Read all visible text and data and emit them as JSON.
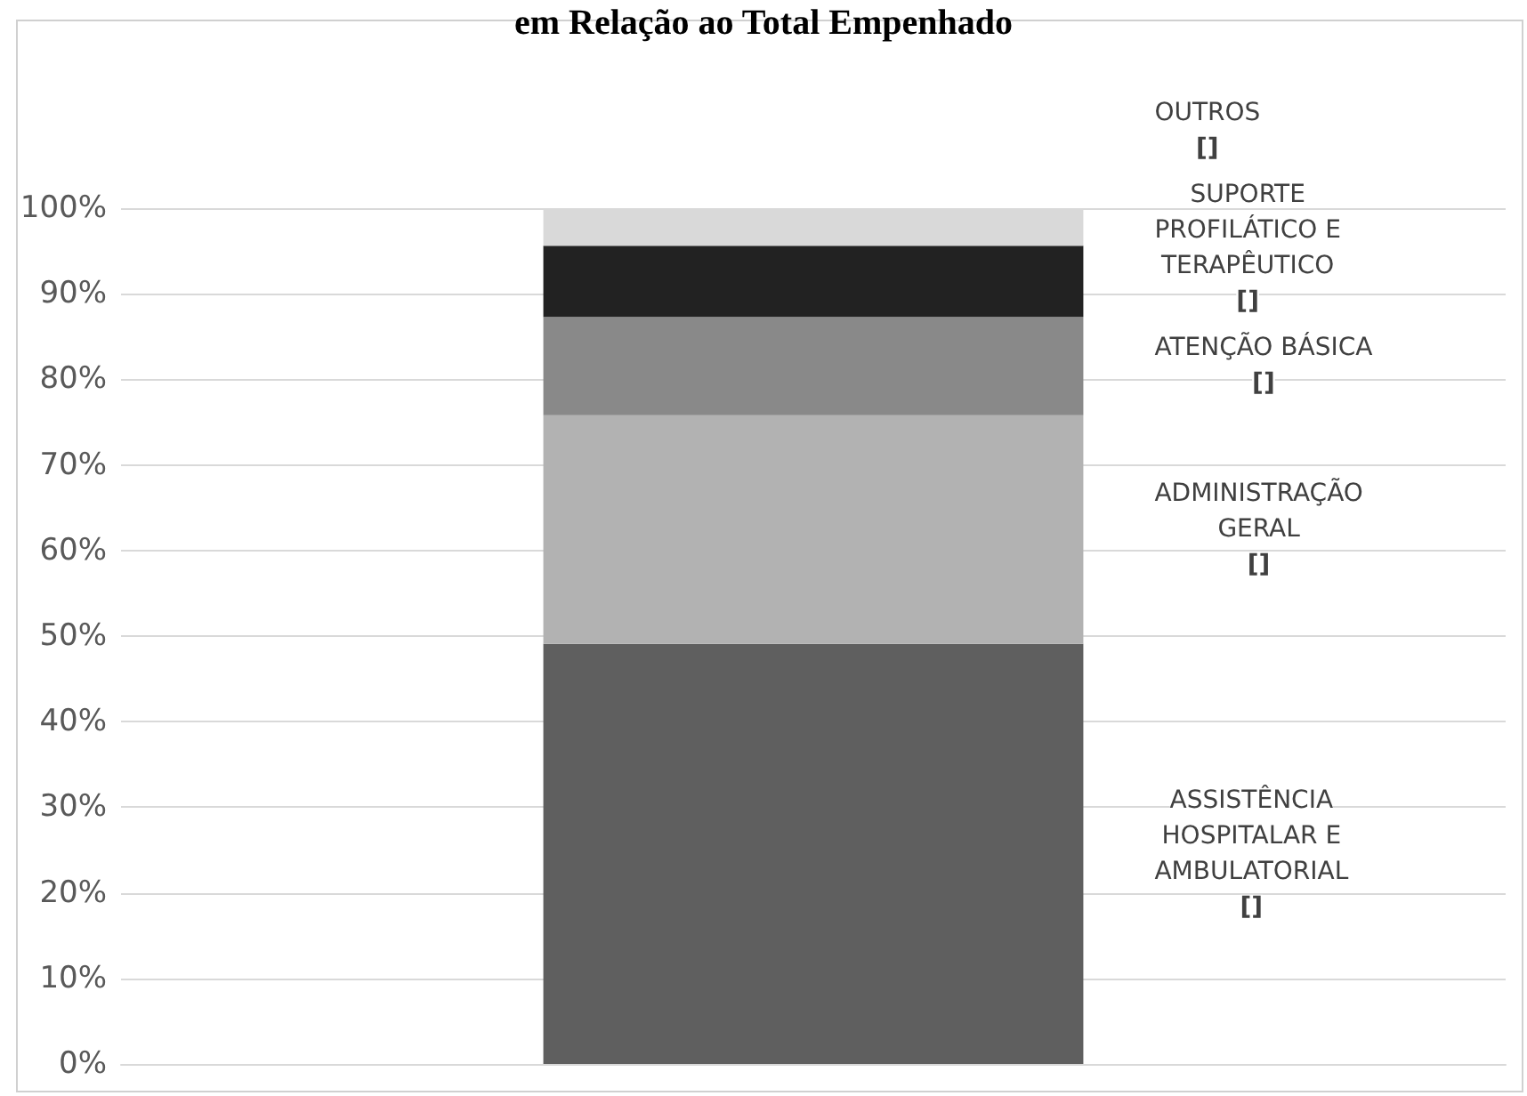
{
  "chart_data": {
    "type": "bar",
    "title": "em Relação ao Total Empenhado",
    "stacked": true,
    "categories": [
      null
    ],
    "series": [
      {
        "name": "ASSISTÊNCIA HOSPITALAR E AMBULATORIAL",
        "color": "#5f5f5f",
        "values": [
          49.1
        ]
      },
      {
        "name": "ADMINISTRAÇÃO GERAL",
        "color": "#b2b2b2",
        "values": [
          26.7
        ]
      },
      {
        "name": "ATENÇÃO BÁSICA",
        "color": "#898989",
        "values": [
          11.5
        ]
      },
      {
        "name": "SUPORTE PROFILÁTICO E TERAPÊUTICO",
        "color": "#222222",
        "values": [
          8.3
        ]
      },
      {
        "name": "OUTROS",
        "color": "#d9d9d9",
        "values": [
          4.4
        ]
      }
    ],
    "annotations": [
      "[]",
      "[]",
      "[]",
      "[]",
      "[]"
    ],
    "ylim": [
      0,
      100
    ],
    "yticks": [
      {
        "value": 0,
        "label": "0%"
      },
      {
        "value": 10,
        "label": "10%"
      },
      {
        "value": 20,
        "label": "20%"
      },
      {
        "value": 30,
        "label": "30%"
      },
      {
        "value": 40,
        "label": "40%"
      },
      {
        "value": 50,
        "label": "50%"
      },
      {
        "value": 60,
        "label": "60%"
      },
      {
        "value": 70,
        "label": "70%"
      },
      {
        "value": 80,
        "label": "80%"
      },
      {
        "value": 90,
        "label": "90%"
      },
      {
        "value": 100,
        "label": "100%"
      }
    ],
    "grid": true,
    "legend": false
  }
}
